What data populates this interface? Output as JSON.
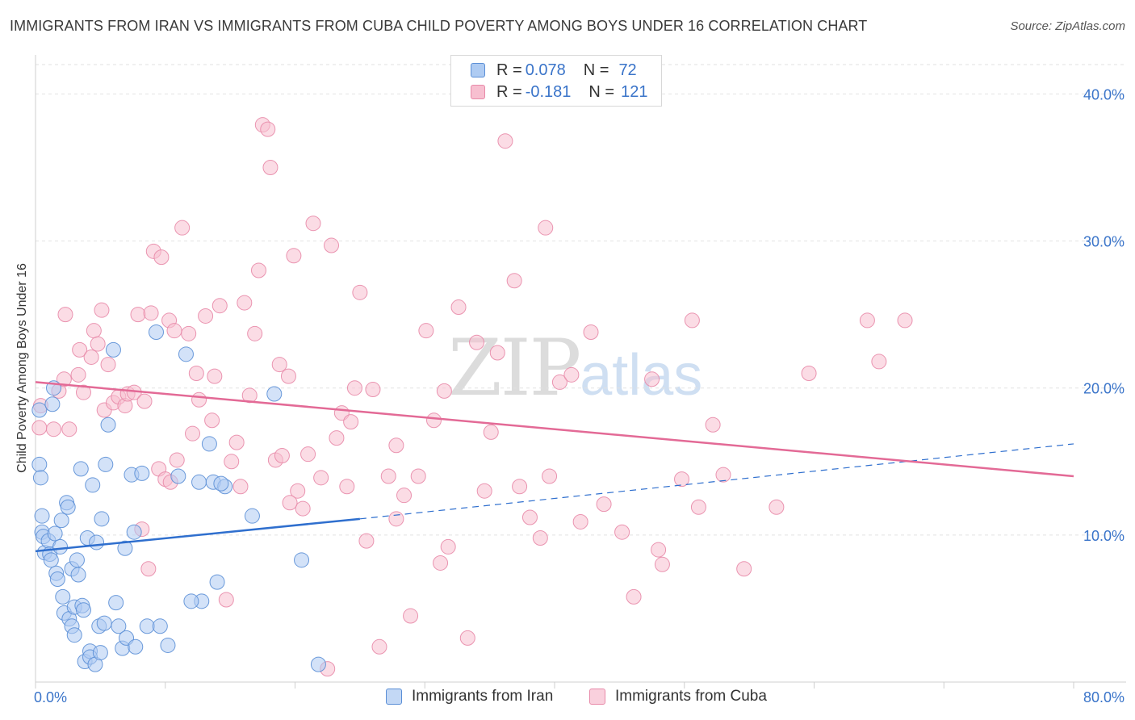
{
  "title": "IMMIGRANTS FROM IRAN VS IMMIGRANTS FROM CUBA CHILD POVERTY AMONG BOYS UNDER 16 CORRELATION CHART",
  "source": "Source: ZipAtlas.com",
  "watermark": {
    "zip": "ZIP",
    "atlas": "atlas"
  },
  "colors": {
    "iran_fill": "#aecbf2",
    "iran_stroke": "#5b8fd6",
    "iran_line": "#2f6fce",
    "cuba_fill": "#f7bfd0",
    "cuba_stroke": "#e88aa9",
    "cuba_line": "#e36a96",
    "axis_label": "#3a74c9",
    "grid": "#e2e2e2"
  },
  "legend": {
    "iran": {
      "r_label": "R =",
      "r_value": "0.078",
      "n_label": "N =",
      "n_value": "72"
    },
    "cuba": {
      "r_label": "R =",
      "r_value": "-0.181",
      "n_label": "N =",
      "n_value": "121"
    }
  },
  "bottom_legend": {
    "iran": "Immigrants from Iran",
    "cuba": "Immigrants from Cuba"
  },
  "chart_data": {
    "type": "scatter",
    "title": "IMMIGRANTS FROM IRAN VS IMMIGRANTS FROM CUBA CHILD POVERTY AMONG BOYS UNDER 16 CORRELATION CHART",
    "xlabel": "",
    "ylabel": "Child Poverty Among Boys Under 16",
    "xlim": [
      0,
      80
    ],
    "ylim": [
      0,
      42
    ],
    "x_tick_labels": [
      "0.0%",
      "80.0%"
    ],
    "y_ticks": [
      10,
      20,
      30,
      40
    ],
    "y_tick_labels": [
      "10.0%",
      "20.0%",
      "30.0%",
      "40.0%"
    ],
    "grid": true,
    "legend_position": "top-center",
    "series": [
      {
        "name": "Immigrants from Iran",
        "trend": {
          "x": [
            0,
            25
          ],
          "y": [
            8.9,
            11.1
          ],
          "dashed_to": [
            80,
            16.2
          ]
        },
        "points": [
          [
            0.3,
            18.5
          ],
          [
            0.3,
            14.8
          ],
          [
            0.4,
            13.9
          ],
          [
            0.5,
            11.3
          ],
          [
            0.5,
            10.2
          ],
          [
            0.6,
            9.9
          ],
          [
            0.7,
            8.8
          ],
          [
            1.0,
            9.6
          ],
          [
            1.1,
            8.7
          ],
          [
            1.2,
            8.3
          ],
          [
            1.3,
            18.9
          ],
          [
            1.4,
            20.0
          ],
          [
            1.5,
            10.1
          ],
          [
            1.6,
            7.4
          ],
          [
            1.7,
            7.0
          ],
          [
            1.9,
            9.2
          ],
          [
            2.0,
            11.0
          ],
          [
            2.1,
            5.8
          ],
          [
            2.2,
            4.7
          ],
          [
            2.4,
            12.2
          ],
          [
            2.5,
            11.9
          ],
          [
            2.6,
            4.3
          ],
          [
            2.8,
            3.8
          ],
          [
            2.8,
            7.7
          ],
          [
            3.0,
            3.2
          ],
          [
            3.0,
            5.1
          ],
          [
            3.2,
            8.3
          ],
          [
            3.3,
            7.3
          ],
          [
            3.5,
            14.5
          ],
          [
            3.6,
            5.2
          ],
          [
            3.7,
            4.9
          ],
          [
            3.8,
            1.4
          ],
          [
            4.0,
            9.8
          ],
          [
            4.2,
            2.1
          ],
          [
            4.2,
            1.7
          ],
          [
            4.4,
            13.4
          ],
          [
            4.6,
            1.2
          ],
          [
            4.7,
            9.5
          ],
          [
            4.9,
            3.8
          ],
          [
            5.0,
            2.0
          ],
          [
            5.1,
            11.1
          ],
          [
            5.3,
            4.0
          ],
          [
            5.4,
            14.8
          ],
          [
            5.6,
            17.5
          ],
          [
            6.2,
            5.4
          ],
          [
            6.4,
            3.8
          ],
          [
            6.7,
            2.3
          ],
          [
            6.9,
            9.1
          ],
          [
            7.0,
            3.0
          ],
          [
            7.4,
            14.1
          ],
          [
            7.6,
            10.2
          ],
          [
            7.7,
            2.4
          ],
          [
            8.2,
            14.2
          ],
          [
            8.6,
            3.8
          ],
          [
            9.3,
            23.8
          ],
          [
            9.6,
            3.8
          ],
          [
            10.2,
            2.5
          ],
          [
            11.0,
            14.0
          ],
          [
            11.6,
            22.3
          ],
          [
            12.6,
            13.6
          ],
          [
            12.8,
            5.5
          ],
          [
            13.4,
            16.2
          ],
          [
            13.7,
            13.6
          ],
          [
            14.0,
            6.8
          ],
          [
            14.6,
            13.3
          ],
          [
            16.7,
            11.3
          ],
          [
            18.4,
            19.6
          ],
          [
            20.5,
            8.3
          ],
          [
            21.8,
            1.2
          ],
          [
            6.0,
            22.6
          ],
          [
            14.3,
            13.5
          ],
          [
            12.0,
            5.5
          ]
        ]
      },
      {
        "name": "Immigrants from Cuba",
        "trend": {
          "x": [
            0,
            80
          ],
          "y": [
            20.4,
            14.0
          ]
        },
        "points": [
          [
            0.3,
            17.3
          ],
          [
            0.4,
            18.8
          ],
          [
            1.4,
            17.2
          ],
          [
            1.8,
            19.8
          ],
          [
            2.2,
            20.6
          ],
          [
            2.3,
            25.0
          ],
          [
            2.6,
            17.2
          ],
          [
            3.3,
            20.9
          ],
          [
            3.4,
            22.6
          ],
          [
            3.7,
            19.7
          ],
          [
            4.3,
            22.1
          ],
          [
            4.5,
            23.9
          ],
          [
            4.8,
            23.0
          ],
          [
            5.1,
            25.3
          ],
          [
            5.3,
            18.5
          ],
          [
            5.6,
            21.6
          ],
          [
            6.0,
            19.0
          ],
          [
            6.4,
            19.4
          ],
          [
            6.9,
            18.8
          ],
          [
            7.1,
            19.6
          ],
          [
            7.6,
            19.7
          ],
          [
            7.9,
            25.0
          ],
          [
            8.2,
            10.4
          ],
          [
            8.4,
            19.1
          ],
          [
            8.7,
            7.7
          ],
          [
            8.9,
            25.1
          ],
          [
            9.1,
            29.3
          ],
          [
            9.5,
            14.5
          ],
          [
            9.7,
            28.9
          ],
          [
            10.0,
            13.8
          ],
          [
            10.3,
            24.6
          ],
          [
            10.7,
            23.9
          ],
          [
            10.9,
            15.1
          ],
          [
            11.3,
            30.9
          ],
          [
            11.8,
            23.7
          ],
          [
            12.1,
            16.9
          ],
          [
            12.4,
            21.0
          ],
          [
            12.6,
            19.2
          ],
          [
            13.1,
            24.9
          ],
          [
            13.6,
            17.8
          ],
          [
            13.8,
            20.8
          ],
          [
            14.2,
            25.6
          ],
          [
            14.7,
            5.6
          ],
          [
            15.1,
            15.0
          ],
          [
            15.5,
            16.3
          ],
          [
            15.8,
            13.3
          ],
          [
            16.1,
            25.8
          ],
          [
            16.5,
            19.5
          ],
          [
            16.9,
            23.7
          ],
          [
            17.2,
            28.0
          ],
          [
            17.5,
            37.9
          ],
          [
            17.9,
            37.6
          ],
          [
            18.1,
            35.0
          ],
          [
            18.5,
            15.1
          ],
          [
            18.8,
            21.6
          ],
          [
            19.0,
            15.4
          ],
          [
            19.5,
            20.8
          ],
          [
            19.9,
            29.0
          ],
          [
            20.2,
            13.0
          ],
          [
            20.6,
            11.8
          ],
          [
            21.0,
            15.5
          ],
          [
            21.4,
            31.2
          ],
          [
            22.0,
            13.9
          ],
          [
            22.5,
            0.9
          ],
          [
            22.8,
            29.7
          ],
          [
            23.2,
            16.6
          ],
          [
            23.6,
            18.3
          ],
          [
            24.0,
            13.3
          ],
          [
            24.3,
            17.7
          ],
          [
            24.6,
            20.0
          ],
          [
            25.0,
            26.5
          ],
          [
            25.5,
            9.6
          ],
          [
            26.0,
            19.9
          ],
          [
            26.5,
            2.4
          ],
          [
            27.2,
            14.0
          ],
          [
            27.8,
            16.1
          ],
          [
            28.4,
            12.7
          ],
          [
            28.9,
            4.5
          ],
          [
            29.5,
            14.0
          ],
          [
            30.1,
            23.9
          ],
          [
            30.7,
            17.8
          ],
          [
            31.2,
            8.1
          ],
          [
            31.5,
            19.8
          ],
          [
            31.8,
            9.2
          ],
          [
            32.6,
            25.5
          ],
          [
            33.3,
            3.0
          ],
          [
            34.0,
            23.1
          ],
          [
            34.6,
            13.0
          ],
          [
            35.1,
            17.0
          ],
          [
            35.6,
            22.4
          ],
          [
            36.2,
            36.8
          ],
          [
            36.9,
            27.3
          ],
          [
            37.3,
            13.3
          ],
          [
            38.1,
            11.2
          ],
          [
            38.9,
            9.8
          ],
          [
            39.3,
            30.9
          ],
          [
            39.6,
            14.0
          ],
          [
            40.4,
            20.4
          ],
          [
            41.3,
            20.9
          ],
          [
            42.0,
            10.9
          ],
          [
            42.8,
            23.8
          ],
          [
            43.8,
            12.1
          ],
          [
            45.2,
            10.2
          ],
          [
            46.1,
            5.8
          ],
          [
            47.5,
            20.6
          ],
          [
            48.0,
            9.0
          ],
          [
            48.3,
            8.0
          ],
          [
            49.8,
            13.8
          ],
          [
            50.6,
            24.6
          ],
          [
            51.1,
            11.9
          ],
          [
            52.2,
            17.5
          ],
          [
            53.0,
            14.1
          ],
          [
            54.6,
            7.7
          ],
          [
            57.1,
            11.9
          ],
          [
            59.6,
            21.0
          ],
          [
            64.1,
            24.6
          ],
          [
            65.0,
            21.8
          ],
          [
            67.0,
            24.6
          ],
          [
            10.4,
            13.6
          ],
          [
            19.6,
            12.2
          ],
          [
            27.8,
            11.1
          ]
        ]
      }
    ]
  }
}
